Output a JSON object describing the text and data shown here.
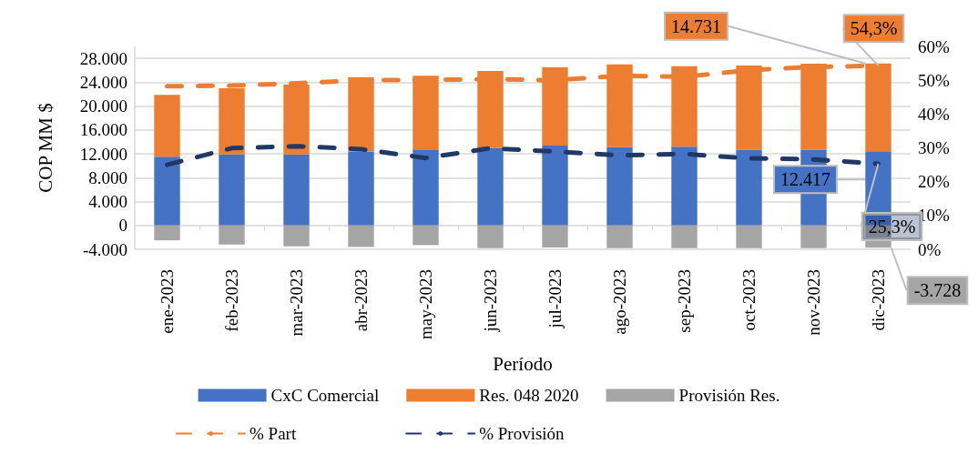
{
  "chart_data": {
    "type": "bar",
    "stacked": true,
    "categories": [
      "ene-2023",
      "feb-2023",
      "mar-2023",
      "abr-2023",
      "may-2023",
      "jun-2023",
      "jul-2023",
      "ago-2023",
      "sep-2023",
      "oct-2023",
      "nov-2023",
      "dic-2023"
    ],
    "xlabel": "Período",
    "ylabel": "COP MM $",
    "ylim": [
      -4000,
      30000
    ],
    "yticks": [
      {
        "value": -4000,
        "label": "-4.000"
      },
      {
        "value": 0,
        "label": "0"
      },
      {
        "value": 4000,
        "label": "4.000"
      },
      {
        "value": 8000,
        "label": "8.000"
      },
      {
        "value": 12000,
        "label": "12.000"
      },
      {
        "value": 16000,
        "label": "16.000"
      },
      {
        "value": 20000,
        "label": "20.000"
      },
      {
        "value": 24000,
        "label": "24.000"
      },
      {
        "value": 28000,
        "label": "28.000"
      }
    ],
    "y2lim": [
      0,
      60
    ],
    "y2ticks": [
      {
        "value": 0,
        "label": "0%"
      },
      {
        "value": 10,
        "label": "10%"
      },
      {
        "value": 20,
        "label": "20%"
      },
      {
        "value": 30,
        "label": "30%"
      },
      {
        "value": 40,
        "label": "40%"
      },
      {
        "value": 50,
        "label": "50%"
      },
      {
        "value": 60,
        "label": "60%"
      }
    ],
    "grid": "y",
    "legend": "bottom",
    "line_style": "dashed",
    "marker": "none",
    "series": [
      {
        "name": "CxC Comercial",
        "color": "#4472c4",
        "values": [
          11500,
          11900,
          11900,
          12400,
          12600,
          13000,
          13400,
          13100,
          13200,
          12700,
          12700,
          12417
        ],
        "value_labels": [
          null,
          null,
          null,
          null,
          null,
          null,
          null,
          null,
          null,
          null,
          null,
          "12.417"
        ]
      },
      {
        "name": "Res. 048 2020",
        "color": "#ed7d31",
        "values": [
          10400,
          11100,
          11700,
          12400,
          12500,
          12900,
          13100,
          13900,
          13500,
          14100,
          14400,
          14731
        ],
        "value_labels": [
          null,
          null,
          null,
          null,
          null,
          null,
          null,
          null,
          null,
          null,
          null,
          "14.731"
        ]
      },
      {
        "name": "Provisión Res.",
        "color": "#a5a5a5",
        "values": [
          -2500,
          -3200,
          -3500,
          -3600,
          -3300,
          -3800,
          -3700,
          -3800,
          -3800,
          -3800,
          -3800,
          -3728
        ],
        "value_labels": [
          null,
          null,
          null,
          null,
          null,
          null,
          null,
          null,
          null,
          null,
          null,
          "-3.728"
        ]
      },
      {
        "name": "% Part",
        "type": "line",
        "axis": "y2",
        "color": "#ed7d31",
        "values": [
          48.2,
          48.4,
          49.1,
          50.0,
          50.1,
          50.3,
          50.0,
          51.3,
          51.0,
          53.0,
          53.9,
          54.3
        ],
        "value_labels": [
          null,
          null,
          null,
          null,
          null,
          null,
          null,
          null,
          null,
          null,
          null,
          "54,3%"
        ]
      },
      {
        "name": "% Provisión",
        "type": "line",
        "axis": "y2",
        "color": "#1f3864",
        "values": [
          25.0,
          29.9,
          30.5,
          29.6,
          27.0,
          29.9,
          28.9,
          27.8,
          28.2,
          26.9,
          26.6,
          25.3
        ],
        "value_labels": [
          null,
          null,
          null,
          null,
          null,
          null,
          null,
          null,
          null,
          null,
          null,
          "25,3%"
        ]
      }
    ]
  }
}
